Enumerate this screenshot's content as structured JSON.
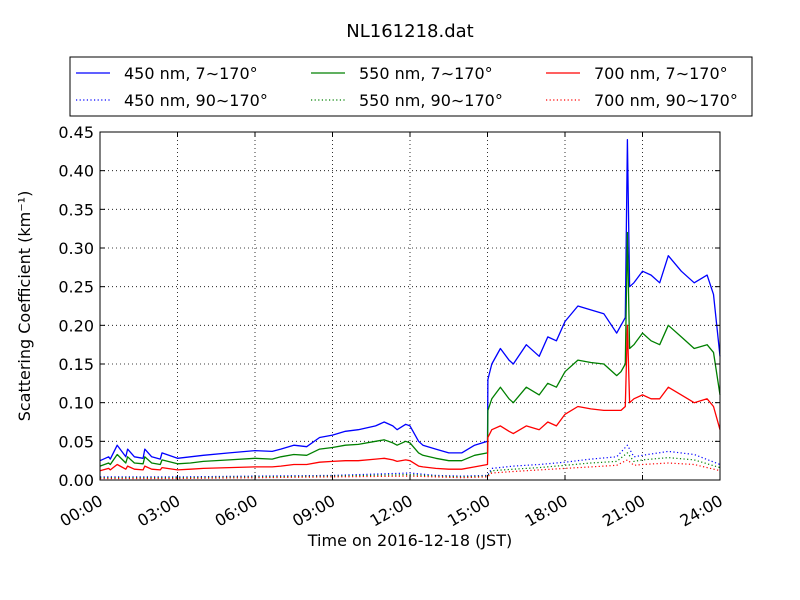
{
  "chart_data": {
    "type": "line",
    "title": "NL161218.dat",
    "xlabel": "Time on 2016-12-18 (JST)",
    "ylabel": "Scattering Coefficient (km⁻¹)",
    "xlim": [
      "00:00",
      "24:00"
    ],
    "ylim": [
      0,
      0.45
    ],
    "x_ticks": [
      "00:00",
      "03:00",
      "06:00",
      "09:00",
      "12:00",
      "15:00",
      "18:00",
      "21:00",
      "24:00"
    ],
    "y_ticks": [
      "0.00",
      "0.05",
      "0.10",
      "0.15",
      "0.20",
      "0.25",
      "0.30",
      "0.35",
      "0.40",
      "0.45"
    ],
    "grid": true,
    "legend_position": "top, outside, 3 columns",
    "series": [
      {
        "name": "450 nm, 7∼170°",
        "color": "#0000ff",
        "style": "solid",
        "x": [
          "00:00",
          "00:20",
          "00:24",
          "00:40",
          "01:00",
          "01:04",
          "01:20",
          "01:40",
          "01:44",
          "02:00",
          "02:20",
          "02:24",
          "03:00",
          "03:30",
          "04:00",
          "05:00",
          "06:00",
          "06:40",
          "07:00",
          "07:30",
          "08:00",
          "08:30",
          "09:00",
          "09:30",
          "10:00",
          "10:40",
          "11:00",
          "11:20",
          "11:30",
          "11:50",
          "12:00",
          "12:20",
          "12:30",
          "13:00",
          "13:30",
          "14:00",
          "14:30",
          "15:00",
          "15:01",
          "15:10",
          "15:30",
          "15:50",
          "16:00",
          "16:30",
          "17:00",
          "17:20",
          "17:40",
          "18:00",
          "18:30",
          "19:00",
          "19:30",
          "20:00",
          "20:10",
          "20:20",
          "20:25",
          "20:30",
          "20:40",
          "21:00",
          "21:20",
          "21:40",
          "22:00",
          "22:30",
          "23:00",
          "23:30",
          "23:45",
          "24:00"
        ],
        "y": [
          0.025,
          0.03,
          0.027,
          0.045,
          0.03,
          0.04,
          0.03,
          0.028,
          0.04,
          0.03,
          0.027,
          0.035,
          0.028,
          0.03,
          0.032,
          0.035,
          0.038,
          0.037,
          0.04,
          0.045,
          0.043,
          0.055,
          0.058,
          0.063,
          0.065,
          0.07,
          0.075,
          0.07,
          0.065,
          0.072,
          0.07,
          0.05,
          0.045,
          0.04,
          0.035,
          0.035,
          0.045,
          0.05,
          0.13,
          0.15,
          0.17,
          0.155,
          0.15,
          0.175,
          0.16,
          0.185,
          0.18,
          0.205,
          0.225,
          0.22,
          0.215,
          0.19,
          0.2,
          0.21,
          0.44,
          0.25,
          0.255,
          0.27,
          0.265,
          0.255,
          0.29,
          0.27,
          0.255,
          0.265,
          0.24,
          0.16
        ]
      },
      {
        "name": "550 nm, 7∼170°",
        "color": "#008000",
        "style": "solid",
        "x": [
          "00:00",
          "00:20",
          "00:24",
          "00:40",
          "01:00",
          "01:04",
          "01:20",
          "01:40",
          "01:44",
          "02:00",
          "02:20",
          "02:24",
          "03:00",
          "03:30",
          "04:00",
          "05:00",
          "06:00",
          "06:40",
          "07:00",
          "07:30",
          "08:00",
          "08:30",
          "09:00",
          "09:30",
          "10:00",
          "10:40",
          "11:00",
          "11:20",
          "11:30",
          "11:50",
          "12:00",
          "12:20",
          "12:30",
          "13:00",
          "13:30",
          "14:00",
          "14:30",
          "15:00",
          "15:01",
          "15:10",
          "15:30",
          "15:50",
          "16:00",
          "16:30",
          "17:00",
          "17:20",
          "17:40",
          "18:00",
          "18:30",
          "19:00",
          "19:30",
          "20:00",
          "20:10",
          "20:20",
          "20:25",
          "20:30",
          "20:40",
          "21:00",
          "21:20",
          "21:40",
          "22:00",
          "22:30",
          "23:00",
          "23:30",
          "23:45",
          "24:00"
        ],
        "y": [
          0.018,
          0.022,
          0.02,
          0.033,
          0.022,
          0.03,
          0.022,
          0.021,
          0.03,
          0.022,
          0.02,
          0.026,
          0.021,
          0.022,
          0.024,
          0.026,
          0.028,
          0.027,
          0.03,
          0.033,
          0.032,
          0.04,
          0.042,
          0.045,
          0.046,
          0.05,
          0.052,
          0.048,
          0.045,
          0.05,
          0.048,
          0.035,
          0.032,
          0.028,
          0.025,
          0.025,
          0.032,
          0.035,
          0.09,
          0.105,
          0.12,
          0.105,
          0.1,
          0.12,
          0.11,
          0.125,
          0.12,
          0.14,
          0.155,
          0.152,
          0.15,
          0.135,
          0.14,
          0.15,
          0.32,
          0.17,
          0.175,
          0.19,
          0.18,
          0.175,
          0.2,
          0.185,
          0.17,
          0.175,
          0.165,
          0.11
        ]
      },
      {
        "name": "700 nm, 7∼170°",
        "color": "#ff0000",
        "style": "solid",
        "x": [
          "00:00",
          "00:20",
          "00:24",
          "00:40",
          "01:00",
          "01:04",
          "01:20",
          "01:40",
          "01:44",
          "02:00",
          "02:20",
          "02:24",
          "03:00",
          "03:30",
          "04:00",
          "05:00",
          "06:00",
          "06:40",
          "07:00",
          "07:30",
          "08:00",
          "08:30",
          "09:00",
          "09:30",
          "10:00",
          "10:40",
          "11:00",
          "11:20",
          "11:30",
          "11:50",
          "12:00",
          "12:20",
          "12:30",
          "13:00",
          "13:30",
          "14:00",
          "14:30",
          "15:00",
          "15:01",
          "15:10",
          "15:30",
          "15:50",
          "16:00",
          "16:30",
          "17:00",
          "17:20",
          "17:40",
          "18:00",
          "18:30",
          "19:00",
          "19:30",
          "20:00",
          "20:10",
          "20:20",
          "20:25",
          "20:30",
          "20:40",
          "21:00",
          "21:20",
          "21:40",
          "22:00",
          "22:30",
          "23:00",
          "23:30",
          "23:45",
          "24:00"
        ],
        "y": [
          0.012,
          0.015,
          0.013,
          0.02,
          0.014,
          0.018,
          0.014,
          0.013,
          0.018,
          0.014,
          0.013,
          0.016,
          0.013,
          0.014,
          0.015,
          0.016,
          0.017,
          0.017,
          0.018,
          0.02,
          0.02,
          0.023,
          0.024,
          0.025,
          0.025,
          0.027,
          0.028,
          0.026,
          0.024,
          0.026,
          0.025,
          0.018,
          0.017,
          0.015,
          0.014,
          0.014,
          0.017,
          0.02,
          0.055,
          0.065,
          0.07,
          0.063,
          0.06,
          0.07,
          0.065,
          0.075,
          0.07,
          0.085,
          0.095,
          0.092,
          0.09,
          0.09,
          0.09,
          0.095,
          0.2,
          0.1,
          0.105,
          0.11,
          0.105,
          0.105,
          0.12,
          0.11,
          0.1,
          0.105,
          0.095,
          0.065
        ]
      },
      {
        "name": "450 nm, 90∼170°",
        "color": "#0000ff",
        "style": "dotted",
        "x": [
          "00:00",
          "03:00",
          "06:00",
          "09:00",
          "12:00",
          "13:00",
          "14:00",
          "15:00",
          "15:10",
          "16:00",
          "17:00",
          "18:00",
          "19:00",
          "20:00",
          "20:25",
          "20:40",
          "21:00",
          "22:00",
          "23:00",
          "24:00"
        ],
        "y": [
          0.004,
          0.004,
          0.005,
          0.006,
          0.009,
          0.006,
          0.005,
          0.006,
          0.015,
          0.018,
          0.02,
          0.023,
          0.027,
          0.03,
          0.045,
          0.03,
          0.032,
          0.037,
          0.033,
          0.02
        ]
      },
      {
        "name": "550 nm, 90∼170°",
        "color": "#008000",
        "style": "dotted",
        "x": [
          "00:00",
          "03:00",
          "06:00",
          "09:00",
          "12:00",
          "13:00",
          "14:00",
          "15:00",
          "15:10",
          "16:00",
          "17:00",
          "18:00",
          "19:00",
          "20:00",
          "20:25",
          "20:40",
          "21:00",
          "22:00",
          "23:00",
          "24:00"
        ],
        "y": [
          0.003,
          0.003,
          0.004,
          0.005,
          0.007,
          0.005,
          0.004,
          0.005,
          0.012,
          0.014,
          0.016,
          0.019,
          0.022,
          0.024,
          0.035,
          0.024,
          0.026,
          0.029,
          0.026,
          0.016
        ]
      },
      {
        "name": "700 nm, 90∼170°",
        "color": "#ff0000",
        "style": "dotted",
        "x": [
          "00:00",
          "03:00",
          "06:00",
          "09:00",
          "12:00",
          "13:00",
          "14:00",
          "15:00",
          "15:10",
          "16:00",
          "17:00",
          "18:00",
          "19:00",
          "20:00",
          "20:25",
          "20:40",
          "21:00",
          "22:00",
          "23:00",
          "24:00"
        ],
        "y": [
          0.002,
          0.002,
          0.003,
          0.004,
          0.005,
          0.004,
          0.003,
          0.004,
          0.009,
          0.011,
          0.013,
          0.015,
          0.017,
          0.019,
          0.026,
          0.019,
          0.02,
          0.022,
          0.02,
          0.012
        ]
      }
    ]
  }
}
